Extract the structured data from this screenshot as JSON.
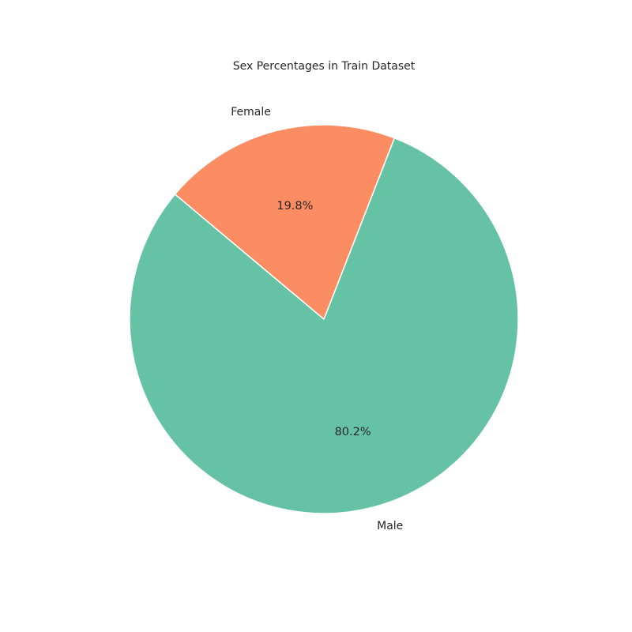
{
  "chart_data": {
    "type": "pie",
    "title": "Sex Percentages in Train Dataset",
    "categories": [
      "Male",
      "Female"
    ],
    "values": [
      80.2,
      19.8
    ],
    "percent_labels": [
      "80.2%",
      "19.8%"
    ],
    "colors": [
      "#66c2a5",
      "#fc8d62"
    ],
    "start_angle_deg": 140,
    "direction": "counterclockwise",
    "edge_color": "#ffffff",
    "legend": false
  }
}
